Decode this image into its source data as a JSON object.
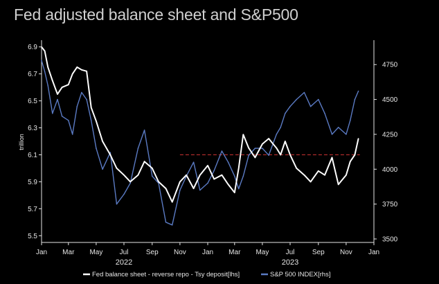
{
  "title": "Fed adjusted balance sheet and S&P500",
  "chart_data": {
    "type": "line",
    "title": "Fed adjusted balance sheet and S&P500",
    "ylabel": "trillion",
    "y_left": {
      "min": 5.45,
      "max": 6.95,
      "ticks": [
        "5.5",
        "5.7",
        "5.9",
        "6.1",
        "6.3",
        "6.5",
        "6.7",
        "6.9"
      ]
    },
    "y_right": {
      "min": 3475,
      "max": 4925,
      "ticks": [
        "3500",
        "3750",
        "4000",
        "4250",
        "4500",
        "4750"
      ]
    },
    "x_range": [
      "2022-01-01",
      "2024-01-01"
    ],
    "x_ticks": [
      "Jan",
      "Mar",
      "May",
      "Jul",
      "Sep",
      "Nov",
      "Jan",
      "Mar",
      "May",
      "Jul",
      "Sep",
      "Nov",
      "Jan"
    ],
    "x_tick_dates": [
      "2022-01-01",
      "2022-03-01",
      "2022-05-01",
      "2022-07-01",
      "2022-09-01",
      "2022-11-01",
      "2023-01-01",
      "2023-03-01",
      "2023-05-01",
      "2023-07-01",
      "2023-09-01",
      "2023-11-01",
      "2024-01-01"
    ],
    "years": [
      {
        "label": "2022",
        "date": "2022-07-01"
      },
      {
        "label": "2023",
        "date": "2023-07-01"
      }
    ],
    "reference_line": {
      "axis": "left",
      "value": 6.1,
      "from": "2022-11-01",
      "to": "2023-12-01",
      "color": "#cc3333"
    },
    "series": [
      {
        "name": "Fed balance sheet - reverse repo - Tsy deposit[lhs]",
        "axis": "left",
        "color": "#ffffff",
        "x": [
          "2022-01-01",
          "2022-01-08",
          "2022-01-15",
          "2022-01-25",
          "2022-02-05",
          "2022-02-15",
          "2022-03-01",
          "2022-03-10",
          "2022-03-20",
          "2022-03-30",
          "2022-04-10",
          "2022-04-20",
          "2022-05-01",
          "2022-05-15",
          "2022-06-01",
          "2022-06-15",
          "2022-07-01",
          "2022-07-15",
          "2022-08-01",
          "2022-08-15",
          "2022-09-01",
          "2022-09-15",
          "2022-10-01",
          "2022-10-15",
          "2022-11-01",
          "2022-11-15",
          "2022-12-01",
          "2022-12-15",
          "2023-01-01",
          "2023-01-15",
          "2023-02-01",
          "2023-02-15",
          "2023-03-01",
          "2023-03-10",
          "2023-03-20",
          "2023-04-01",
          "2023-04-15",
          "2023-05-01",
          "2023-05-15",
          "2023-06-01",
          "2023-06-10",
          "2023-06-20",
          "2023-07-01",
          "2023-07-15",
          "2023-08-01",
          "2023-08-15",
          "2023-09-01",
          "2023-09-15",
          "2023-10-01",
          "2023-10-15",
          "2023-11-01",
          "2023-11-10",
          "2023-11-20",
          "2023-11-28"
        ],
        "y": [
          6.9,
          6.87,
          6.75,
          6.65,
          6.55,
          6.6,
          6.62,
          6.7,
          6.75,
          6.73,
          6.72,
          6.45,
          6.35,
          6.2,
          6.1,
          6.0,
          5.95,
          5.9,
          5.95,
          6.05,
          6.0,
          5.9,
          5.85,
          5.75,
          5.9,
          5.95,
          5.85,
          5.95,
          6.02,
          5.92,
          5.95,
          5.88,
          5.82,
          6.0,
          6.25,
          6.15,
          6.08,
          6.18,
          6.22,
          6.15,
          6.1,
          6.2,
          6.1,
          6.0,
          5.95,
          5.9,
          5.98,
          5.95,
          6.08,
          5.88,
          5.95,
          6.05,
          6.1,
          6.22
        ]
      },
      {
        "name": "S&P 500 INDEX[rhs]",
        "axis": "right",
        "color": "#5b7bc4",
        "x": [
          "2022-01-01",
          "2022-01-08",
          "2022-01-15",
          "2022-01-25",
          "2022-02-05",
          "2022-02-15",
          "2022-03-01",
          "2022-03-10",
          "2022-03-20",
          "2022-03-30",
          "2022-04-10",
          "2022-04-20",
          "2022-05-01",
          "2022-05-15",
          "2022-06-01",
          "2022-06-15",
          "2022-07-01",
          "2022-07-15",
          "2022-08-01",
          "2022-08-15",
          "2022-09-01",
          "2022-09-15",
          "2022-10-01",
          "2022-10-15",
          "2022-11-01",
          "2022-11-15",
          "2022-12-01",
          "2022-12-15",
          "2023-01-01",
          "2023-01-15",
          "2023-02-01",
          "2023-02-15",
          "2023-03-01",
          "2023-03-10",
          "2023-03-20",
          "2023-04-01",
          "2023-04-15",
          "2023-05-01",
          "2023-05-15",
          "2023-06-01",
          "2023-06-10",
          "2023-06-20",
          "2023-07-01",
          "2023-07-15",
          "2023-08-01",
          "2023-08-15",
          "2023-09-01",
          "2023-09-15",
          "2023-10-01",
          "2023-10-15",
          "2023-11-01",
          "2023-11-10",
          "2023-11-20",
          "2023-11-28"
        ],
        "y": [
          4780,
          4700,
          4600,
          4400,
          4500,
          4380,
          4350,
          4250,
          4450,
          4550,
          4500,
          4350,
          4150,
          4000,
          4120,
          3750,
          3820,
          3900,
          4150,
          4280,
          3950,
          3900,
          3620,
          3600,
          3850,
          3950,
          4050,
          3850,
          3900,
          3990,
          4130,
          4050,
          3950,
          3860,
          3950,
          4100,
          4150,
          4150,
          4100,
          4250,
          4300,
          4400,
          4450,
          4500,
          4550,
          4450,
          4500,
          4400,
          4250,
          4300,
          4250,
          4350,
          4500,
          4560
        ]
      }
    ]
  }
}
